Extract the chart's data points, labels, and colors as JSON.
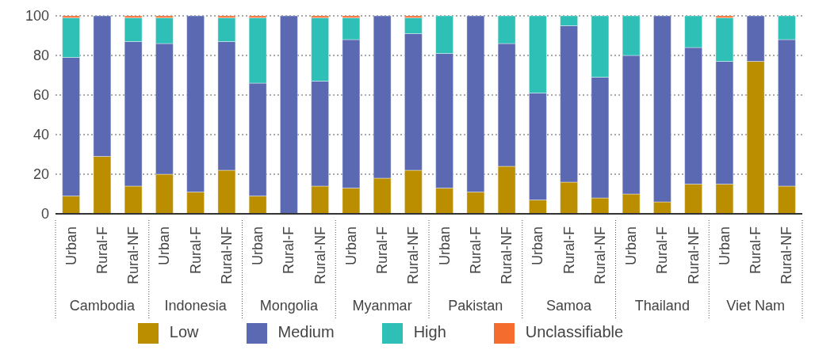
{
  "chart_data": {
    "type": "bar",
    "stacked": true,
    "categories": [
      "Urban",
      "Rural-F",
      "Rural-NF",
      "Urban",
      "Rural-F",
      "Rural-NF",
      "Urban",
      "Rural-F",
      "Rural-NF",
      "Urban",
      "Rural-F",
      "Rural-NF",
      "Urban",
      "Rural-F",
      "Rural-NF",
      "Urban",
      "Rural-F",
      "Rural-NF",
      "Urban",
      "Rural-F",
      "Rural-NF",
      "Urban",
      "Rural-F",
      "Rural-NF"
    ],
    "series": [
      {
        "name": "Low",
        "color": "#bb8e00",
        "values": [
          9,
          29,
          14,
          20,
          11,
          22,
          9,
          0,
          14,
          13,
          18,
          22,
          13,
          11,
          24,
          7,
          16,
          8,
          10,
          6,
          15,
          15,
          77,
          14
        ]
      },
      {
        "name": "Medium",
        "color": "#5a69b2",
        "values": [
          70,
          71,
          73,
          66,
          89,
          65,
          57,
          100,
          53,
          75,
          82,
          69,
          68,
          89,
          62,
          54,
          79,
          61,
          70,
          94,
          69,
          62,
          23,
          74
        ]
      },
      {
        "name": "High",
        "color": "#2ec0b6",
        "values": [
          20,
          0,
          12,
          13,
          0,
          12,
          33,
          0,
          32,
          11,
          0,
          8,
          19,
          0,
          14,
          39,
          5,
          31,
          20,
          0,
          16,
          22,
          0,
          12
        ]
      },
      {
        "name": "Unclassifiable",
        "color": "#f46d2f",
        "values": [
          1,
          0,
          1,
          1,
          0,
          1,
          1,
          0,
          1,
          1,
          0,
          1,
          0,
          0,
          0,
          0,
          0,
          0,
          0,
          0,
          0,
          1,
          0,
          0
        ]
      }
    ],
    "ylim": [
      0,
      100
    ],
    "yticks": [
      0,
      20,
      40,
      60,
      80,
      100
    ],
    "grid": "y",
    "legend": "bottom",
    "annotations": [
      "Cambodia",
      "Indonesia",
      "Mongolia",
      "Myanmar",
      "Pakistan",
      "Samoa",
      "Thailand",
      "Viet Nam"
    ]
  }
}
